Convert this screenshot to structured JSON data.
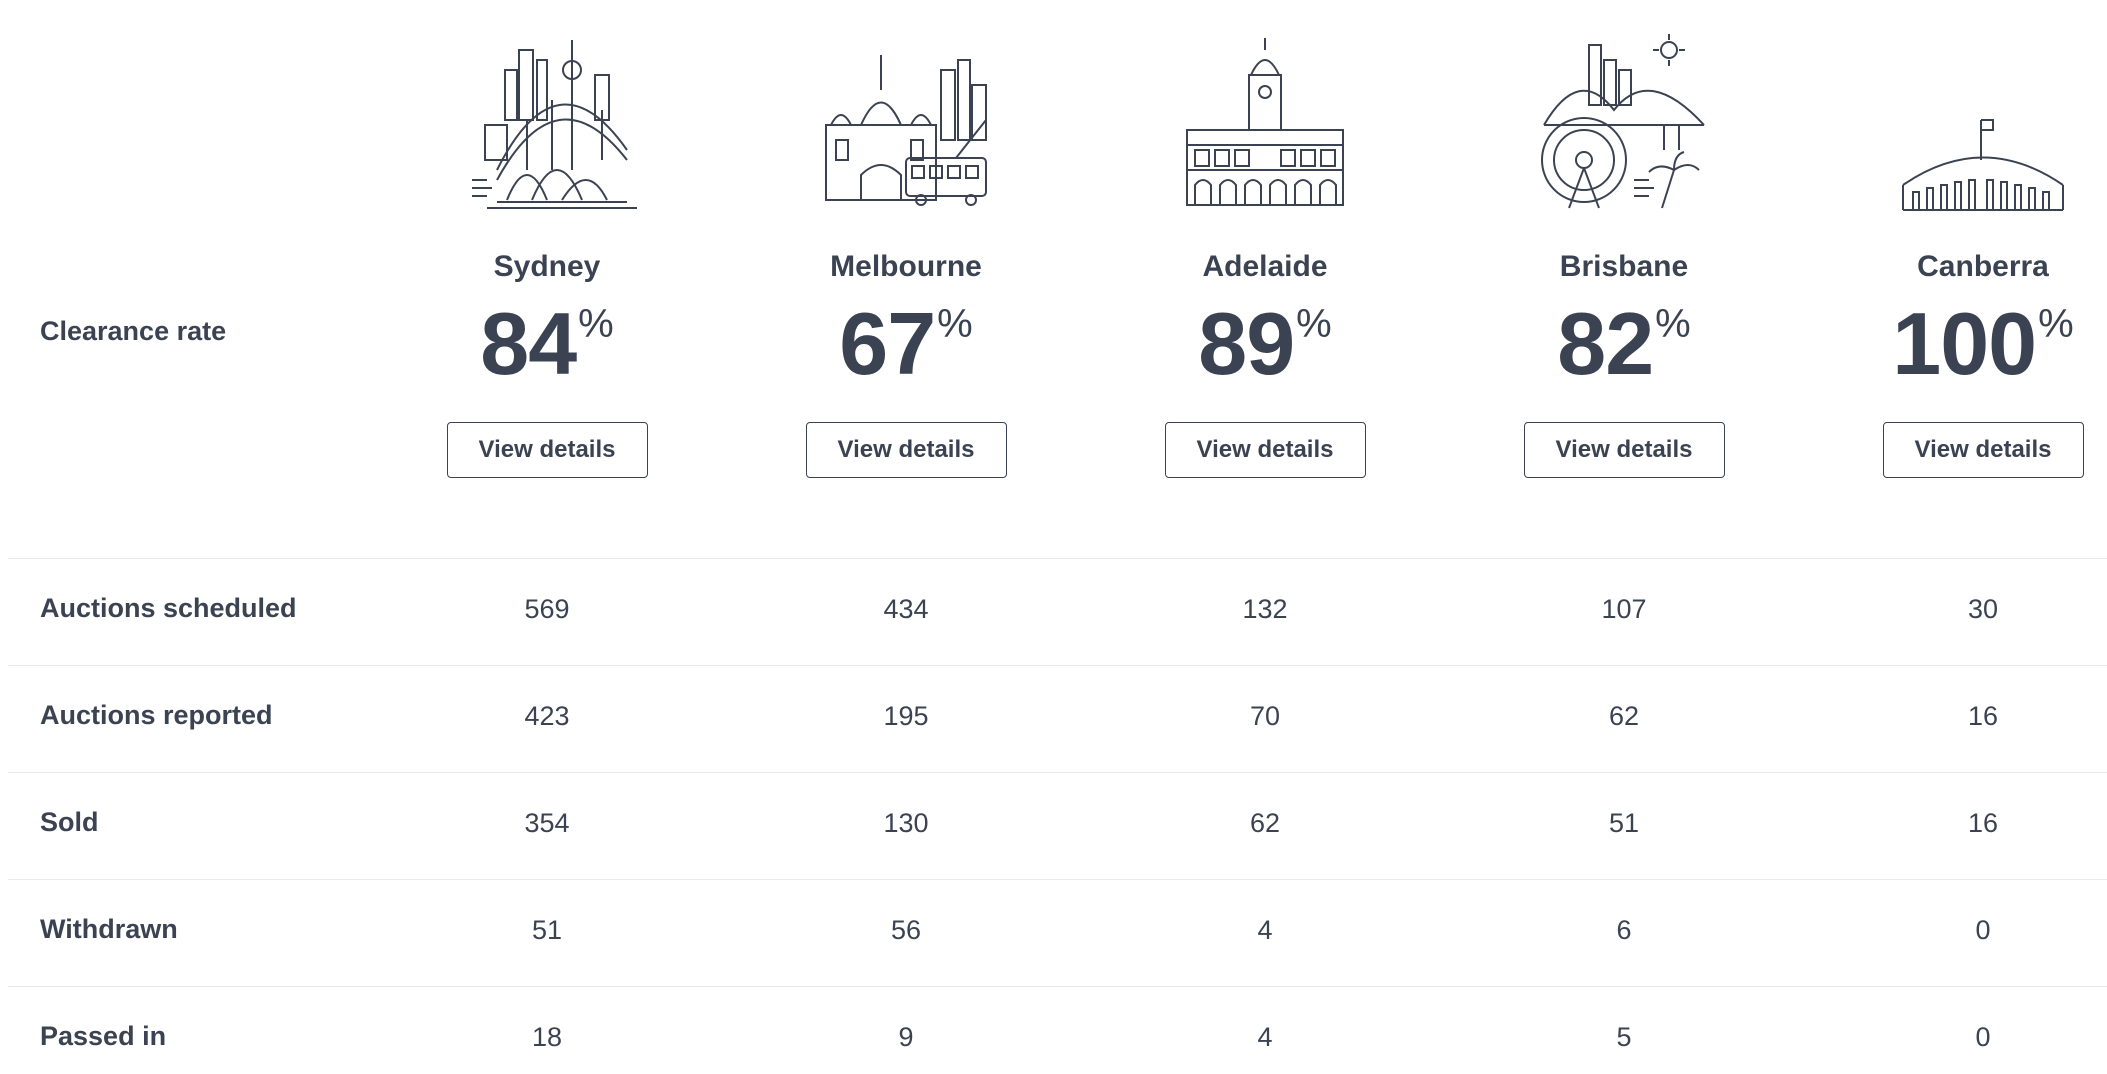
{
  "clearance_label": "Clearance rate",
  "cities": [
    {
      "name": "Sydney",
      "rate": "84",
      "pct": "%",
      "button": "View details",
      "icon": "sydney-skyline-icon"
    },
    {
      "name": "Melbourne",
      "rate": "67",
      "pct": "%",
      "button": "View details",
      "icon": "melbourne-skyline-icon"
    },
    {
      "name": "Adelaide",
      "rate": "89",
      "pct": "%",
      "button": "View details",
      "icon": "adelaide-townhall-icon"
    },
    {
      "name": "Brisbane",
      "rate": "82",
      "pct": "%",
      "button": "View details",
      "icon": "brisbane-skyline-icon"
    },
    {
      "name": "Canberra",
      "rate": "100",
      "pct": "%",
      "button": "View details",
      "icon": "canberra-parliament-icon"
    }
  ],
  "rows": [
    {
      "label": "Auctions scheduled",
      "values": [
        "569",
        "434",
        "132",
        "107",
        "30"
      ]
    },
    {
      "label": "Auctions reported",
      "values": [
        "423",
        "195",
        "70",
        "62",
        "16"
      ]
    },
    {
      "label": "Sold",
      "values": [
        "354",
        "130",
        "62",
        "51",
        "16"
      ]
    },
    {
      "label": "Withdrawn",
      "values": [
        "51",
        "56",
        "4",
        "6",
        "0"
      ]
    },
    {
      "label": "Passed in",
      "values": [
        "18",
        "9",
        "4",
        "5",
        "0"
      ]
    }
  ],
  "colors": {
    "text": "#3b4352",
    "divider": "#e8eaee",
    "line_art": "#3b4352"
  }
}
